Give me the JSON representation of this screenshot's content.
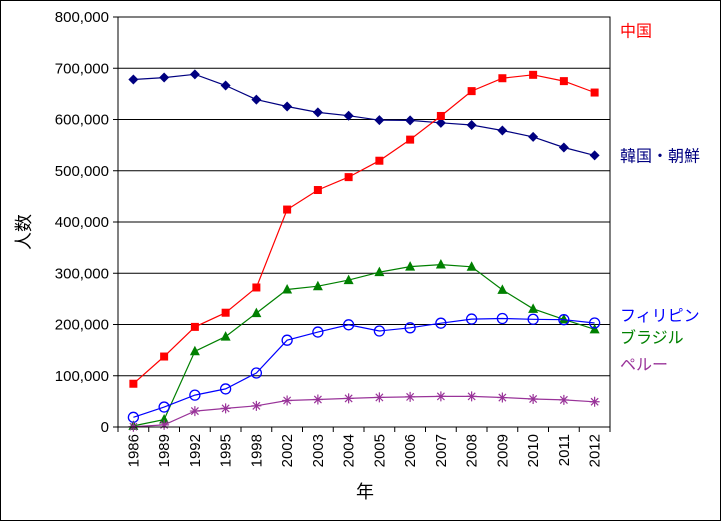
{
  "chart_data": {
    "type": "line",
    "title": "",
    "xlabel": "年",
    "ylabel": "人数",
    "ylim": [
      0,
      800000
    ],
    "yticks": [
      0,
      100000,
      200000,
      300000,
      400000,
      500000,
      600000,
      700000,
      800000
    ],
    "ytick_labels": [
      "0",
      "100,000",
      "200,000",
      "300,000",
      "400,000",
      "500,000",
      "600,000",
      "700,000",
      "800,000"
    ],
    "grid": "horizontal",
    "legend": "right, series labels beside line ends",
    "categories": [
      "1986",
      "1989",
      "1992",
      "1995",
      "1998",
      "2002",
      "2003",
      "2004",
      "2005",
      "2006",
      "2007",
      "2008",
      "2009",
      "2010",
      "2011",
      "2012"
    ],
    "series": [
      {
        "name": "韓国・朝鮮",
        "color": "#000080",
        "marker": "diamond",
        "values": [
          677959,
          681838,
          688144,
          666376,
          638828,
          625422,
          613791,
          607419,
          598687,
          598219,
          593489,
          589239,
          578495,
          565989,
          545401,
          530048
        ]
      },
      {
        "name": "中国",
        "color": "#ff0000",
        "marker": "square",
        "values": [
          84397,
          137499,
          195334,
          222991,
          272230,
          424282,
          462396,
          487570,
          519561,
          560741,
          606889,
          655377,
          680518,
          687156,
          674879,
          652595
        ]
      },
      {
        "name": "ブラジル",
        "color": "#008000",
        "marker": "triangle",
        "values": [
          2135,
          14528,
          147803,
          176440,
          222217,
          268332,
          274700,
          286557,
          302080,
          312979,
          316967,
          312582,
          267456,
          230552,
          210032,
          190609
        ]
      },
      {
        "name": "フィリピン",
        "color": "#0000ff",
        "marker": "circle-open",
        "values": [
          18897,
          38925,
          62218,
          74297,
          105308,
          169359,
          185237,
          199394,
          187261,
          193488,
          202592,
          210617,
          211716,
          210181,
          209376,
          202985
        ]
      },
      {
        "name": "ペルー",
        "color": "#993399",
        "marker": "asterisk",
        "values": [
          553,
          4121,
          31051,
          36269,
          41317,
          51772,
          53649,
          55750,
          57728,
          58721,
          59696,
          59723,
          57464,
          54636,
          52843,
          49255
        ]
      }
    ]
  },
  "colors": {
    "frame": "#000000",
    "grid": "#000000",
    "background": "#ffffff"
  }
}
